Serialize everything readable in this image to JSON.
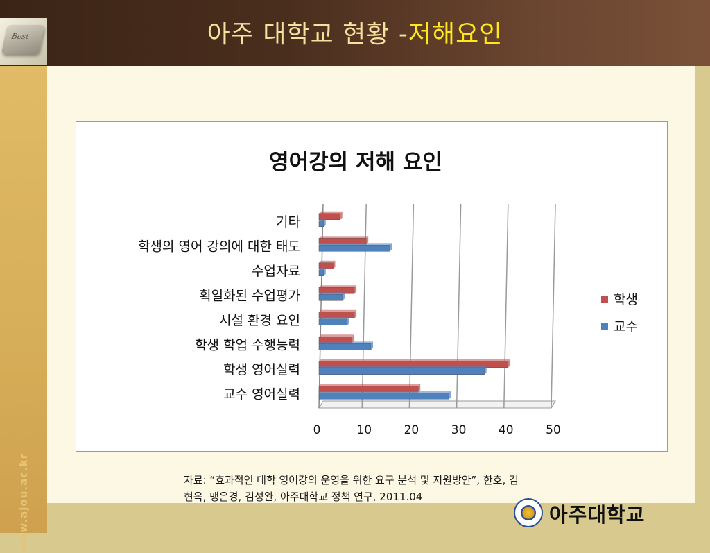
{
  "slide": {
    "title_main": "아주 대학교 현황 -",
    "title_suffix": "저해요인",
    "logo_text": "Best",
    "sidebar_url": "www.ajou.ac.kr",
    "source_line1": "자료: “효과적인 대학 영어강의 운영을 위한 요구 분석 및 지원방안”, 한호, 김",
    "source_line2": "현옥, 맹은경, 김성완, 아주대학교 정책 연구, 2011.04",
    "university_name": "아주대학교"
  },
  "chart_data": {
    "type": "bar",
    "orientation": "horizontal",
    "title": "영어강의 저해 요인",
    "categories": [
      "기타",
      "학생의 영어 강의에 대한 태도",
      "수업자료",
      "획일화된 수업평가",
      "시설 환경 요인",
      "학생 학업 수행능력",
      "학생 영어실력",
      "교수 영어실력"
    ],
    "series": [
      {
        "name": "학생",
        "color": "#c0504d",
        "values": [
          4.5,
          10,
          3,
          7.5,
          7.5,
          7,
          40,
          21
        ]
      },
      {
        "name": "교수",
        "color": "#4f81bd",
        "values": [
          1,
          15,
          1,
          5,
          6,
          11,
          35,
          27.5
        ]
      }
    ],
    "xlim": [
      0,
      50
    ],
    "xticks": [
      "0",
      "10",
      "20",
      "30",
      "40",
      "50"
    ],
    "grid": true,
    "legend_position": "right"
  }
}
